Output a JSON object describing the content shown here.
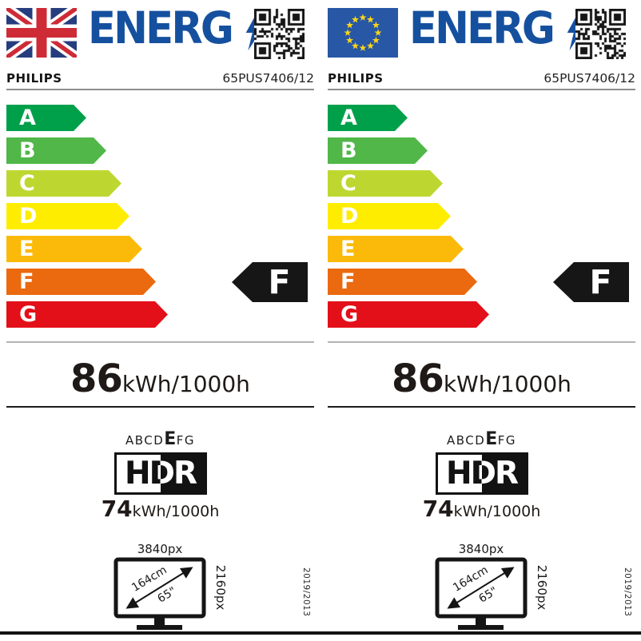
{
  "palette": {
    "logo_blue": "#15509f",
    "indicator_black": "#161616"
  },
  "labels": [
    {
      "region_flag": "uk",
      "logo": "ENERG",
      "brand": "PHILIPS",
      "model": "65PUS7406/12",
      "energy_classes": [
        {
          "letter": "A",
          "color": "#00A04B"
        },
        {
          "letter": "B",
          "color": "#50B748"
        },
        {
          "letter": "C",
          "color": "#BED730"
        },
        {
          "letter": "D",
          "color": "#FFED00"
        },
        {
          "letter": "E",
          "color": "#FBBA0A"
        },
        {
          "letter": "F",
          "color": "#EB690F"
        },
        {
          "letter": "G",
          "color": "#E30F19"
        }
      ],
      "rating_letter": "F",
      "consumption_sdr": {
        "value": "86",
        "unit": "kWh/1000h"
      },
      "hdr_scale": {
        "before": "ABCD",
        "current": "E",
        "after": "FG"
      },
      "hdr_logo": "HDR",
      "consumption_hdr": {
        "value": "74",
        "unit": "kWh/1000h"
      },
      "screen": {
        "horizontal_resolution": "3840px",
        "vertical_resolution": "2160px",
        "diagonal_cm": "164cm",
        "diagonal_inch": "65\""
      },
      "regulation": "2019/2013"
    },
    {
      "region_flag": "eu",
      "logo": "ENERG",
      "brand": "PHILIPS",
      "model": "65PUS7406/12",
      "energy_classes": [
        {
          "letter": "A",
          "color": "#00A04B"
        },
        {
          "letter": "B",
          "color": "#50B748"
        },
        {
          "letter": "C",
          "color": "#BED730"
        },
        {
          "letter": "D",
          "color": "#FFED00"
        },
        {
          "letter": "E",
          "color": "#FBBA0A"
        },
        {
          "letter": "F",
          "color": "#EB690F"
        },
        {
          "letter": "G",
          "color": "#E30F19"
        }
      ],
      "rating_letter": "F",
      "consumption_sdr": {
        "value": "86",
        "unit": "kWh/1000h"
      },
      "hdr_scale": {
        "before": "ABCD",
        "current": "E",
        "after": "FG"
      },
      "hdr_logo": "HDR",
      "consumption_hdr": {
        "value": "74",
        "unit": "kWh/1000h"
      },
      "screen": {
        "horizontal_resolution": "3840px",
        "vertical_resolution": "2160px",
        "diagonal_cm": "164cm",
        "diagonal_inch": "65\""
      },
      "regulation": "2019/2013"
    }
  ]
}
